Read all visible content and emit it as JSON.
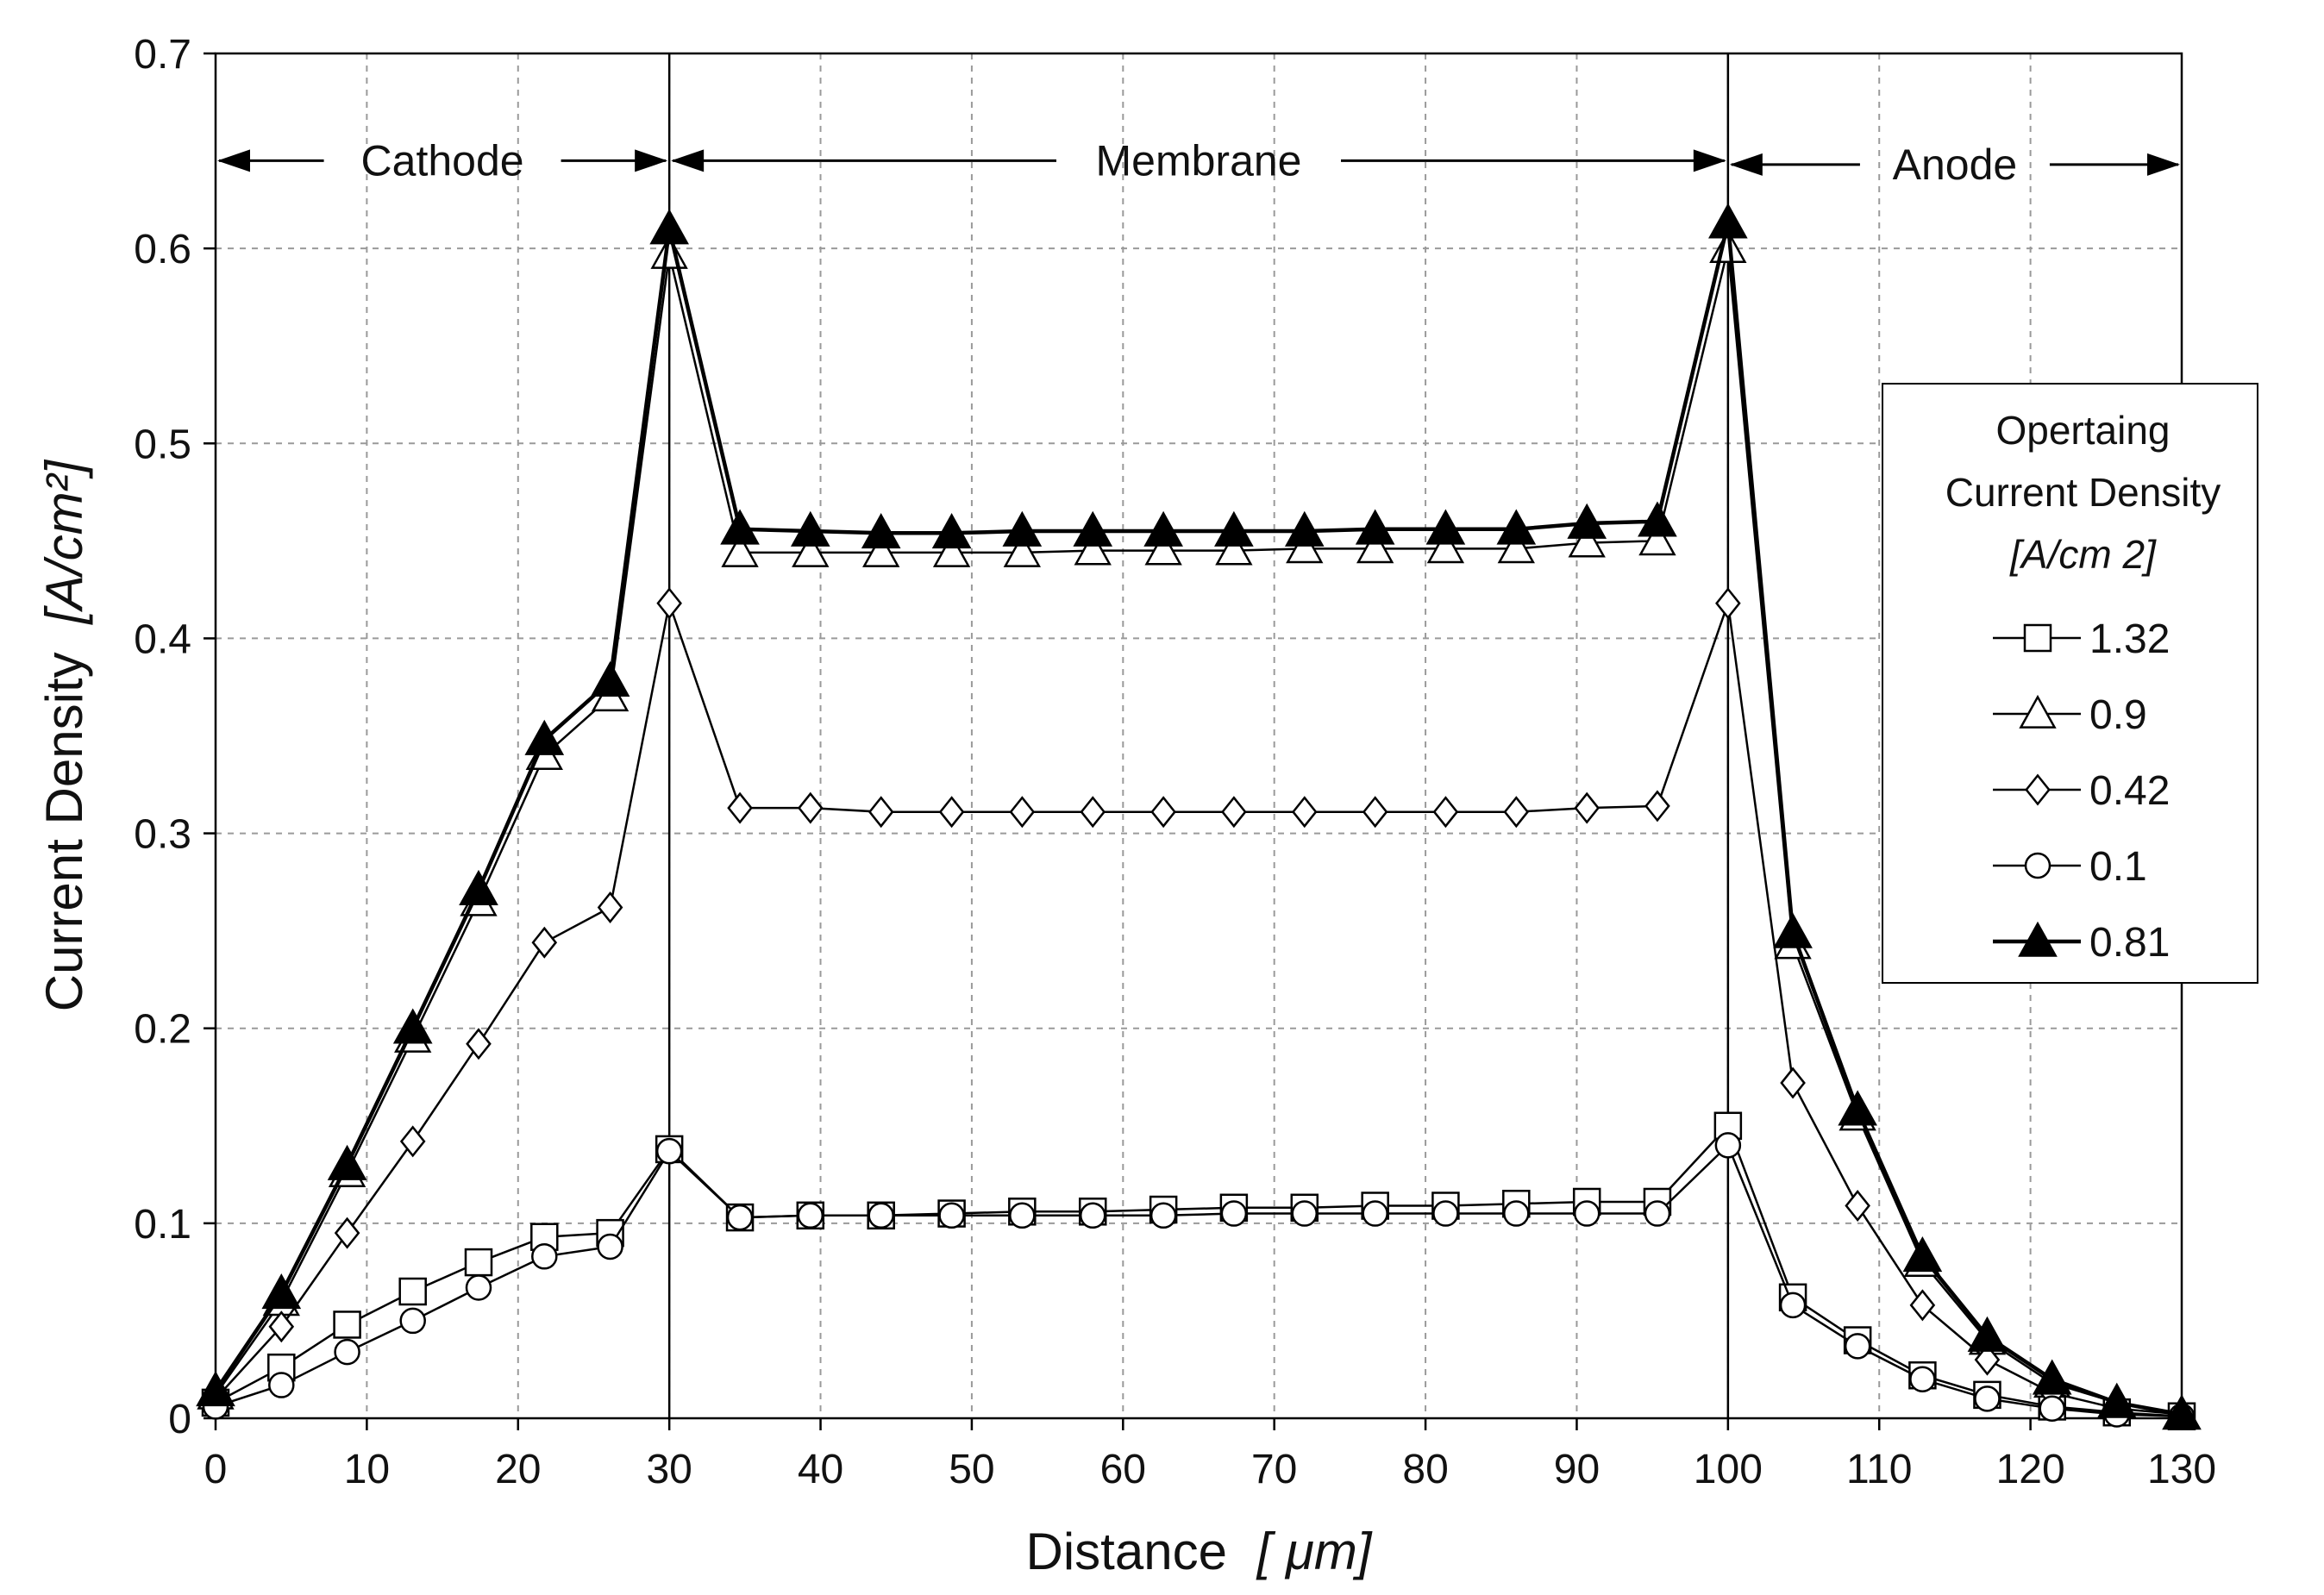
{
  "chart_data": {
    "type": "line",
    "title": "",
    "xlabel": "Distance",
    "xlabel_unit": "[ μm]",
    "ylabel": "Current Density",
    "ylabel_unit": "[A/cm²]",
    "xlim": [
      0,
      130
    ],
    "ylim": [
      0,
      0.7
    ],
    "x_ticks": [
      0,
      10,
      20,
      30,
      40,
      50,
      60,
      70,
      80,
      90,
      100,
      110,
      120,
      130
    ],
    "y_ticks": [
      0,
      0.1,
      0.2,
      0.3,
      0.4,
      0.5,
      0.6,
      0.7
    ],
    "x_tick_labels": [
      "0",
      "10",
      "20",
      "30",
      "40",
      "50",
      "60",
      "70",
      "80",
      "90",
      "100",
      "110",
      "120",
      "130"
    ],
    "y_tick_labels": [
      "0",
      "0.1",
      "0.2",
      "0.3",
      "0.4",
      "0.5",
      "0.6",
      "0.7"
    ],
    "grid": true,
    "boundaries": [
      30,
      100
    ],
    "regions": [
      {
        "label": "Cathode",
        "from": 0,
        "to": 30,
        "y": 0.645
      },
      {
        "label": "Membrane",
        "from": 30,
        "to": 100,
        "y": 0.645
      },
      {
        "label": "Anode",
        "from": 100,
        "to": 130,
        "y": 0.643
      }
    ],
    "legend": {
      "title_lines": [
        "Opertaing",
        "Current Density",
        "[A/cm 2]"
      ],
      "position": "right"
    },
    "x": [
      0,
      4.35,
      8.7,
      13.04,
      17.39,
      21.74,
      26.09,
      30,
      34.67,
      39.33,
      44,
      48.67,
      53.33,
      58,
      62.67,
      67.33,
      72,
      76.67,
      81.33,
      86,
      90.67,
      95.33,
      100,
      104.29,
      108.57,
      112.86,
      117.14,
      121.43,
      125.71,
      130
    ],
    "series": [
      {
        "name": "1.32",
        "marker": "square",
        "values": [
          0.008,
          0.026,
          0.048,
          0.065,
          0.08,
          0.093,
          0.095,
          0.138,
          0.103,
          0.104,
          0.104,
          0.105,
          0.106,
          0.106,
          0.107,
          0.108,
          0.108,
          0.109,
          0.109,
          0.11,
          0.111,
          0.111,
          0.15,
          0.062,
          0.04,
          0.022,
          0.012,
          0.006,
          0.003,
          0.001
        ]
      },
      {
        "name": "0.9",
        "marker": "triangle-open",
        "values": [
          0.012,
          0.06,
          0.126,
          0.195,
          0.265,
          0.34,
          0.37,
          0.597,
          0.444,
          0.444,
          0.444,
          0.444,
          0.444,
          0.445,
          0.445,
          0.445,
          0.446,
          0.446,
          0.446,
          0.446,
          0.449,
          0.45,
          0.6,
          0.243,
          0.155,
          0.08,
          0.04,
          0.018,
          0.008,
          0.002
        ]
      },
      {
        "name": "0.42",
        "marker": "diamond",
        "values": [
          0.01,
          0.047,
          0.095,
          0.142,
          0.192,
          0.244,
          0.262,
          0.418,
          0.313,
          0.313,
          0.311,
          0.311,
          0.311,
          0.311,
          0.311,
          0.311,
          0.311,
          0.311,
          0.311,
          0.311,
          0.313,
          0.314,
          0.418,
          0.172,
          0.109,
          0.058,
          0.03,
          0.013,
          0.005,
          0.002
        ]
      },
      {
        "name": "0.1",
        "marker": "circle",
        "values": [
          0.006,
          0.017,
          0.034,
          0.05,
          0.067,
          0.083,
          0.088,
          0.137,
          0.103,
          0.104,
          0.104,
          0.104,
          0.104,
          0.104,
          0.104,
          0.105,
          0.105,
          0.105,
          0.105,
          0.105,
          0.105,
          0.105,
          0.14,
          0.058,
          0.037,
          0.02,
          0.01,
          0.005,
          0.002,
          0.001
        ]
      },
      {
        "name": "0.81",
        "marker": "triangle-filled",
        "values": [
          0.014,
          0.064,
          0.13,
          0.2,
          0.271,
          0.348,
          0.378,
          0.61,
          0.456,
          0.455,
          0.454,
          0.454,
          0.455,
          0.455,
          0.455,
          0.455,
          0.455,
          0.456,
          0.456,
          0.456,
          0.459,
          0.46,
          0.613,
          0.249,
          0.158,
          0.083,
          0.042,
          0.02,
          0.008,
          0.002
        ]
      }
    ]
  },
  "colors": {
    "line": "#000000",
    "grid": "#9a9a9a",
    "background": "#ffffff"
  }
}
